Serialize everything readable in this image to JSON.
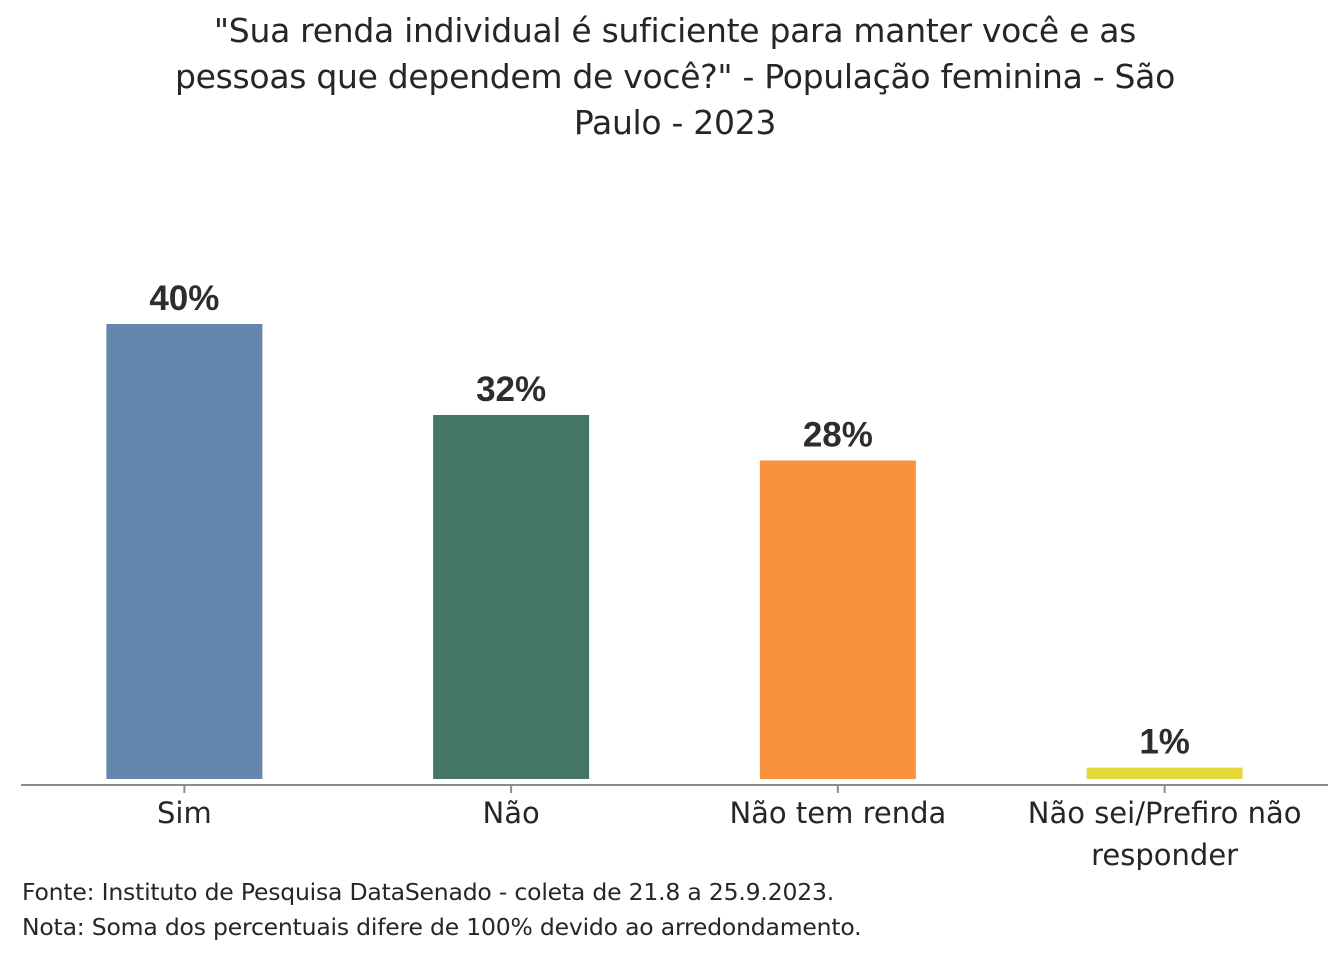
{
  "chart_data": {
    "type": "bar",
    "title": "\"Sua renda individual é suficiente para manter você e as pessoas que dependem de você?\" - População feminina - São Paulo - 2023",
    "title_lines": [
      "\"Sua renda individual é suficiente para manter você e as",
      "pessoas que dependem de você?\" - População feminina - São",
      "Paulo - 2023"
    ],
    "xlabel": "",
    "ylabel": "",
    "ylim": [
      0,
      40
    ],
    "grid": false,
    "legend": "none",
    "unit": "%",
    "categories": [
      "Sim",
      "Não",
      "Não tem renda",
      "Não sei/Prefiro não responder"
    ],
    "category_label_lines": [
      [
        "Sim"
      ],
      [
        "Não"
      ],
      [
        "Não tem renda"
      ],
      [
        "Não sei/Prefiro não",
        "responder"
      ]
    ],
    "values": [
      40,
      32,
      28,
      1
    ],
    "value_labels": [
      "40%",
      "32%",
      "28%",
      "1%"
    ],
    "colors": [
      "#6587ae",
      "#457563",
      "#fa913c",
      "#e5d93a"
    ],
    "axis_color": "#8c8c8c"
  },
  "footnotes": {
    "source": "Fonte: Instituto de Pesquisa DataSenado - coleta de 21.8 a 25.9.2023.",
    "note": "Nota: Soma dos percentuais difere de 100% devido ao arredondamento."
  }
}
